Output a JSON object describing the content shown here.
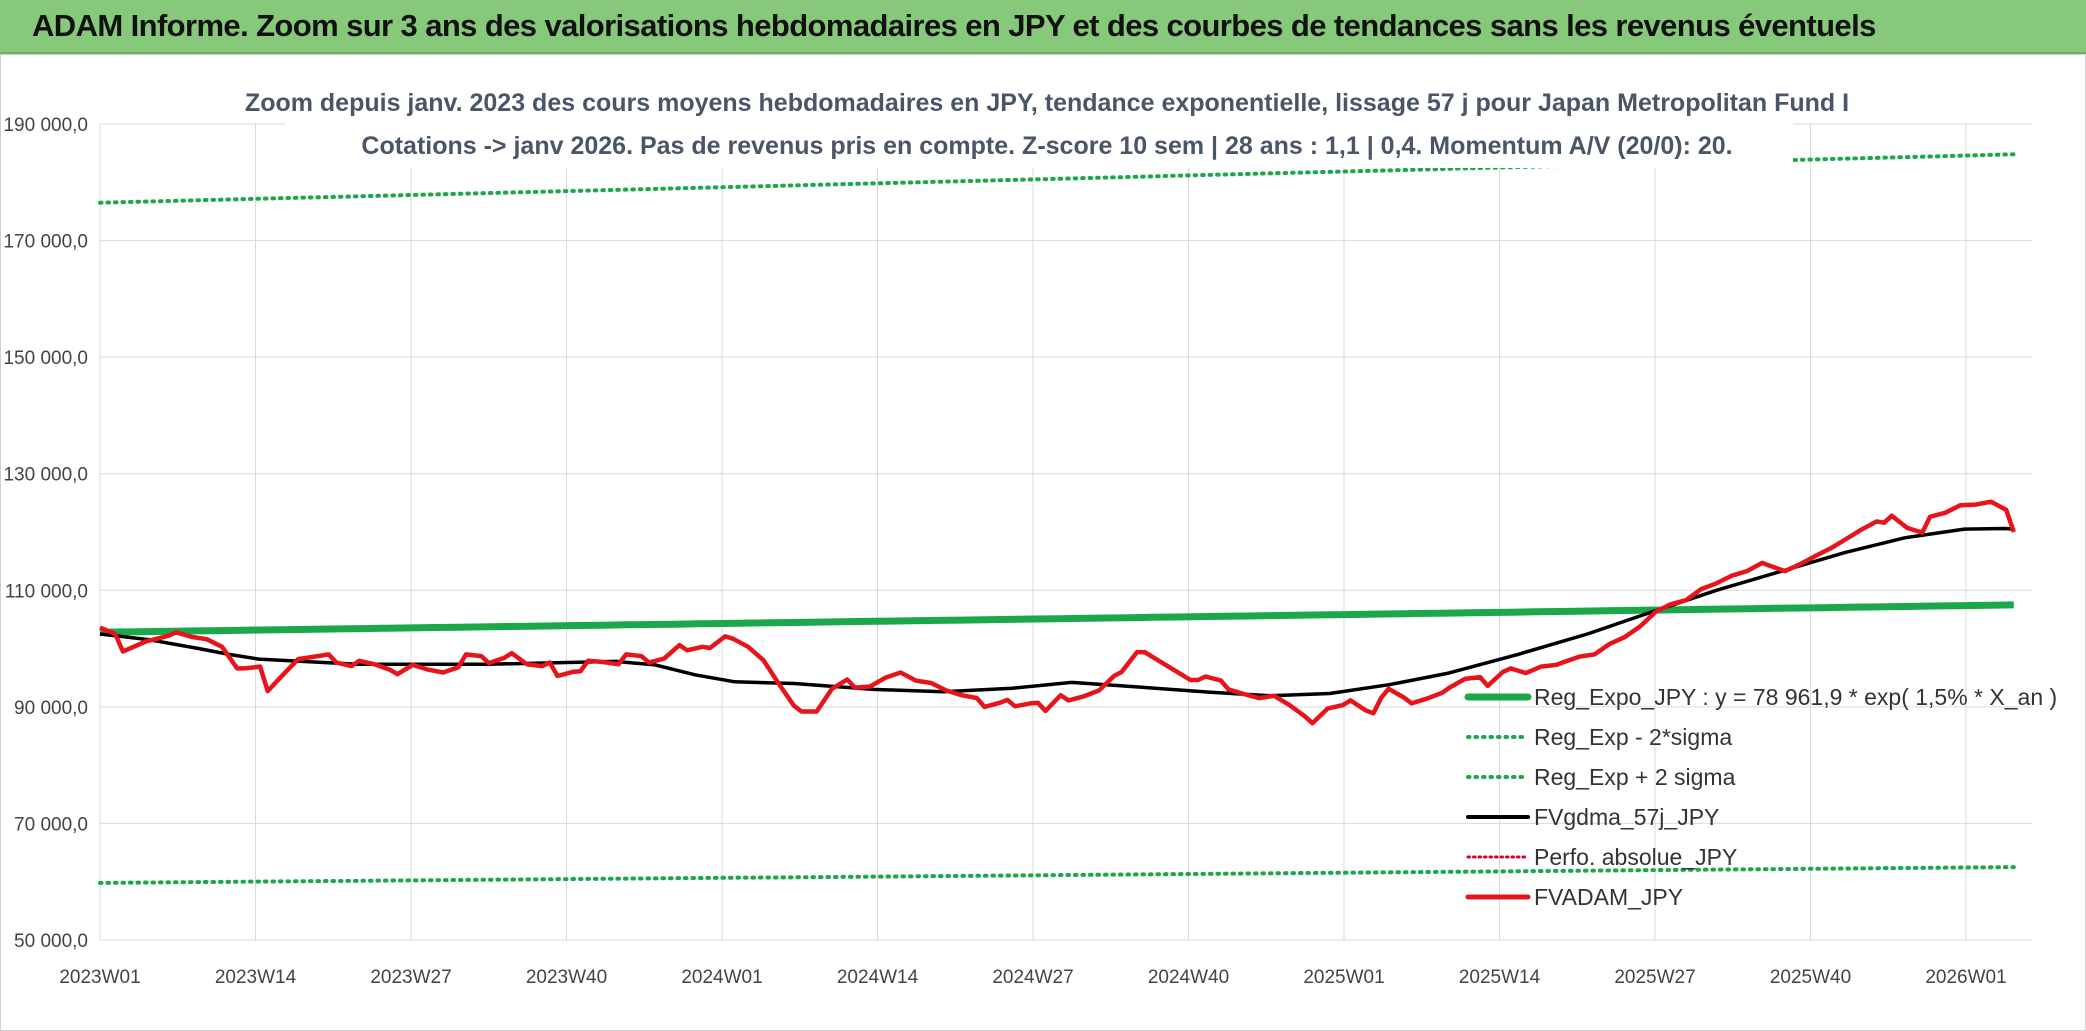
{
  "banner": {
    "title": "ADAM Informe. Zoom sur 3 ans des valorisations hebdomadaires en JPY et des courbes de tendances sans les revenus éventuels"
  },
  "colors": {
    "reg_expo": "#1aa84a",
    "sigma_bands": "#1aa84a",
    "fvgdma": "#000000",
    "perfo": "#e0001a",
    "fvadam": "#e8141c",
    "grid": "#d9d9d9",
    "banner": "#86c97a"
  },
  "chart_data": {
    "type": "line",
    "title_line1": "Zoom depuis janv. 2023 des cours moyens hebdomadaires en JPY, tendance exponentielle, lissage 57 j pour Japan Metropolitan Fund I",
    "title_line2": "Cotations -> janv 2026. Pas de revenus pris en compte. Z-score 10 sem | 28 ans : 1,1 | 0,4. Momentum A/V (20/0): 20.",
    "ylim": [
      50000,
      190000
    ],
    "y_ticks": [
      50000,
      70000,
      90000,
      110000,
      130000,
      150000,
      170000,
      190000
    ],
    "y_tick_labels": [
      "50 000,0",
      "70 000,0",
      "90 000,0",
      "110 000,0",
      "130 000,0",
      "150 000,0",
      "170 000,0",
      "190 000,0"
    ],
    "x_tick_labels": [
      "2023W01",
      "2023W14",
      "2023W27",
      "2023W40",
      "2024W01",
      "2024W14",
      "2024W27",
      "2024W40",
      "2025W01",
      "2025W14",
      "2025W27",
      "2025W40",
      "2026W01"
    ],
    "x_tick_step_weeks": 13,
    "week_count": 161,
    "legend": [
      "Reg_Expo_JPY : y = 78 961,9 * exp( 1,5% *  X_an )",
      "Reg_Exp - 2*sigma",
      "Reg_Exp + 2 sigma",
      "FVgdma_57j_JPY",
      "Perfo. absolue_JPY",
      "FVADAM_JPY"
    ],
    "series": [
      {
        "name": "Reg_Expo_JPY",
        "start": 102800,
        "end": 107500
      },
      {
        "name": "Reg_Exp - 2*sigma",
        "start": 59800,
        "end": 62500
      },
      {
        "name": "Reg_Exp + 2 sigma",
        "start": 176500,
        "end": 184800
      },
      {
        "name": "FVgdma_57j_JPY",
        "points": [
          [
            0,
            102500
          ],
          [
            5,
            101500
          ],
          [
            10,
            100000
          ],
          [
            13,
            99000
          ],
          [
            16,
            98200
          ],
          [
            26,
            97300
          ],
          [
            39,
            97300
          ],
          [
            52,
            97800
          ],
          [
            56,
            97200
          ],
          [
            60,
            95500
          ],
          [
            64,
            94300
          ],
          [
            70,
            94000
          ],
          [
            78,
            93000
          ],
          [
            85,
            92600
          ],
          [
            92,
            93200
          ],
          [
            98,
            94200
          ],
          [
            104,
            93500
          ],
          [
            112,
            92500
          ],
          [
            118,
            91900
          ],
          [
            124,
            92300
          ],
          [
            130,
            93800
          ],
          [
            136,
            95800
          ],
          [
            143,
            99000
          ],
          [
            150,
            102500
          ],
          [
            156,
            106000
          ],
          [
            163,
            110000
          ],
          [
            170,
            113500
          ],
          [
            176,
            116500
          ],
          [
            182,
            119000
          ],
          [
            188,
            120500
          ],
          [
            192,
            120600
          ],
          [
            193,
            120500
          ]
        ]
      },
      {
        "name": "FVADAM_JPY",
        "points": [
          [
            0,
            103600
          ],
          [
            2,
            102500
          ],
          [
            3,
            99500
          ],
          [
            6,
            101200
          ],
          [
            9,
            102200
          ],
          [
            10,
            102800
          ],
          [
            12,
            102000
          ],
          [
            14,
            101600
          ],
          [
            16,
            100300
          ],
          [
            18,
            96600
          ],
          [
            19,
            96600
          ],
          [
            21,
            96900
          ],
          [
            22,
            92700
          ],
          [
            24,
            95500
          ],
          [
            26,
            98200
          ],
          [
            29,
            98800
          ],
          [
            30,
            99000
          ],
          [
            31,
            97600
          ],
          [
            33,
            97000
          ],
          [
            34,
            97900
          ],
          [
            36,
            97300
          ],
          [
            38,
            96400
          ],
          [
            39,
            95600
          ],
          [
            41,
            97200
          ],
          [
            43,
            96400
          ],
          [
            45,
            95900
          ],
          [
            47,
            96800
          ],
          [
            48,
            99000
          ],
          [
            50,
            98700
          ],
          [
            51,
            97500
          ],
          [
            53,
            98400
          ],
          [
            54,
            99200
          ],
          [
            56,
            97300
          ],
          [
            58,
            97000
          ],
          [
            59,
            97600
          ],
          [
            60,
            95300
          ],
          [
            62,
            96000
          ],
          [
            63,
            96100
          ],
          [
            64,
            97900
          ],
          [
            66,
            97700
          ],
          [
            68,
            97300
          ],
          [
            69,
            99000
          ],
          [
            71,
            98700
          ],
          [
            72,
            97600
          ],
          [
            74,
            98300
          ],
          [
            76,
            100600
          ],
          [
            77,
            99700
          ],
          [
            79,
            100300
          ],
          [
            80,
            100100
          ],
          [
            82,
            102100
          ],
          [
            83,
            101700
          ],
          [
            85,
            100300
          ],
          [
            87,
            98000
          ],
          [
            89,
            94000
          ],
          [
            91,
            90200
          ],
          [
            92,
            89200
          ],
          [
            94,
            89200
          ],
          [
            96,
            93100
          ],
          [
            98,
            94700
          ],
          [
            99,
            93300
          ],
          [
            101,
            93500
          ],
          [
            103,
            95000
          ],
          [
            105,
            95900
          ],
          [
            107,
            94500
          ],
          [
            109,
            94100
          ],
          [
            111,
            92800
          ],
          [
            113,
            92000
          ],
          [
            115,
            91500
          ],
          [
            116,
            90000
          ],
          [
            118,
            90700
          ],
          [
            119,
            91200
          ],
          [
            120,
            90100
          ],
          [
            122,
            90600
          ],
          [
            123,
            90700
          ],
          [
            124,
            89300
          ],
          [
            126,
            92000
          ],
          [
            127,
            91100
          ],
          [
            129,
            91800
          ],
          [
            131,
            92800
          ],
          [
            133,
            95300
          ],
          [
            134,
            96000
          ],
          [
            136,
            99400
          ],
          [
            137,
            99400
          ],
          [
            139,
            97800
          ],
          [
            141,
            96200
          ],
          [
            143,
            94600
          ],
          [
            144,
            94600
          ],
          [
            145,
            95200
          ],
          [
            147,
            94500
          ],
          [
            148,
            93000
          ],
          [
            150,
            92200
          ],
          [
            152,
            91500
          ],
          [
            154,
            91900
          ],
          [
            156,
            90300
          ],
          [
            158,
            88400
          ],
          [
            159,
            87200
          ],
          [
            161,
            89700
          ],
          [
            163,
            90300
          ],
          [
            164,
            91100
          ],
          [
            166,
            89400
          ],
          [
            167,
            88900
          ],
          [
            168,
            91500
          ],
          [
            169,
            93100
          ],
          [
            171,
            91600
          ],
          [
            172,
            90600
          ],
          [
            174,
            91400
          ],
          [
            176,
            92400
          ],
          [
            177,
            93300
          ],
          [
            179,
            94800
          ],
          [
            181,
            95100
          ],
          [
            182,
            93600
          ],
          [
            184,
            96000
          ],
          [
            185,
            96600
          ],
          [
            187,
            95800
          ],
          [
            189,
            96900
          ],
          [
            191,
            97200
          ],
          [
            192,
            97700
          ],
          [
            194,
            98600
          ],
          [
            196,
            99000
          ],
          [
            198,
            100800
          ],
          [
            200,
            102000
          ],
          [
            202,
            103800
          ],
          [
            204,
            106300
          ],
          [
            206,
            107600
          ],
          [
            208,
            108300
          ],
          [
            210,
            110200
          ],
          [
            212,
            111200
          ],
          [
            214,
            112500
          ],
          [
            216,
            113300
          ],
          [
            218,
            114700
          ],
          [
            219,
            114200
          ],
          [
            221,
            113300
          ],
          [
            223,
            114500
          ],
          [
            225,
            115900
          ],
          [
            227,
            117200
          ],
          [
            229,
            118800
          ],
          [
            231,
            120400
          ],
          [
            233,
            121800
          ],
          [
            234,
            121600
          ],
          [
            235,
            122800
          ],
          [
            237,
            120700
          ],
          [
            239,
            119900
          ],
          [
            240,
            122600
          ],
          [
            242,
            123300
          ],
          [
            244,
            124600
          ],
          [
            246,
            124700
          ],
          [
            248,
            125200
          ],
          [
            250,
            123800
          ],
          [
            251,
            120000
          ]
        ]
      }
    ]
  }
}
